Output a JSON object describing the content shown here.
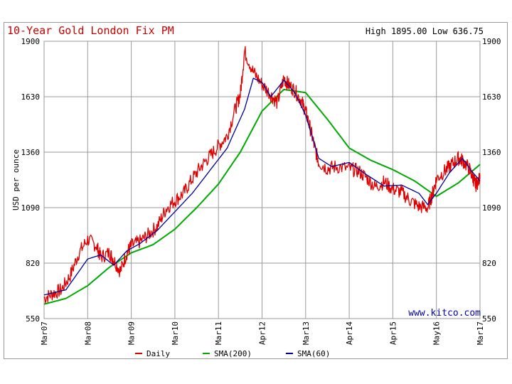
{
  "chart_data": {
    "type": "line",
    "title": "10-Year Gold London Fix PM",
    "high_low": "High 1895.00 Low 636.75",
    "ylabel": "USD per ounce",
    "watermark": "www.kitco.com",
    "ylim": [
      550,
      1900
    ],
    "y_ticks": [
      550,
      820,
      1090,
      1360,
      1630,
      1900
    ],
    "y_tick_labels": [
      "550",
      "820",
      "1090",
      "1360",
      "1630",
      "1900"
    ],
    "x_ticks": [
      "Mar07",
      "Mar08",
      "Mar09",
      "Mar10",
      "Mar11",
      "Apr12",
      "Mar13",
      "Apr14",
      "Apr15",
      "May16",
      "Mar17"
    ],
    "x_tick_pos": [
      0,
      1,
      2,
      3,
      4,
      5,
      6,
      7,
      8,
      9,
      10
    ],
    "legend": [
      {
        "label": "Daily",
        "color": "#e00000"
      },
      {
        "label": "SMA(200)",
        "color": "#00aa00"
      },
      {
        "label": "SMA(60)",
        "color": "#000099"
      }
    ],
    "series": [
      {
        "name": "Daily",
        "color": "#e00000",
        "t": [
          0,
          0.2,
          0.4,
          0.6,
          0.8,
          1.0,
          1.2,
          1.3,
          1.5,
          1.6,
          1.75,
          1.9,
          2.0,
          2.2,
          2.4,
          2.6,
          2.8,
          3.0,
          3.2,
          3.4,
          3.6,
          3.8,
          4.0,
          4.2,
          4.4,
          4.5,
          4.6,
          4.8,
          5.0,
          5.2,
          5.35,
          5.5,
          5.6,
          5.75,
          5.9,
          6.0,
          6.1,
          6.2,
          6.3,
          6.5,
          6.7,
          7.0,
          7.2,
          7.4,
          7.6,
          7.8,
          8.0,
          8.2,
          8.4,
          8.6,
          8.8,
          8.9,
          9.0,
          9.2,
          9.35,
          9.5,
          9.6,
          9.75,
          9.85,
          9.9,
          10.0
        ],
        "values": [
          650,
          672,
          690,
          760,
          870,
          935,
          905,
          850,
          870,
          835,
          780,
          870,
          905,
          925,
          960,
          1000,
          1085,
          1125,
          1160,
          1230,
          1290,
          1340,
          1390,
          1440,
          1580,
          1640,
          1850,
          1750,
          1690,
          1640,
          1600,
          1720,
          1690,
          1660,
          1610,
          1560,
          1480,
          1390,
          1310,
          1280,
          1290,
          1280,
          1270,
          1235,
          1190,
          1215,
          1180,
          1165,
          1125,
          1095,
          1090,
          1150,
          1230,
          1270,
          1300,
          1330,
          1320,
          1280,
          1230,
          1200,
          1230
        ]
      },
      {
        "name": "SMA(200)",
        "color": "#00aa00",
        "t": [
          0,
          0.5,
          1.0,
          1.5,
          2.0,
          2.5,
          3.0,
          3.5,
          4.0,
          4.5,
          5.0,
          5.5,
          6.0,
          6.5,
          7.0,
          7.5,
          8.0,
          8.5,
          9.0,
          9.5,
          10.0
        ],
        "values": [
          620,
          648,
          710,
          800,
          870,
          910,
          985,
          1090,
          1205,
          1360,
          1560,
          1665,
          1650,
          1520,
          1380,
          1320,
          1275,
          1220,
          1145,
          1210,
          1300
        ]
      },
      {
        "name": "SMA(60)",
        "color": "#000099",
        "t": [
          0,
          0.5,
          1.0,
          1.3,
          1.6,
          1.9,
          2.2,
          2.6,
          3.0,
          3.4,
          3.8,
          4.2,
          4.6,
          4.8,
          5.0,
          5.2,
          5.5,
          5.75,
          6.0,
          6.3,
          6.6,
          7.0,
          7.4,
          7.8,
          8.2,
          8.6,
          8.8,
          9.0,
          9.3,
          9.6,
          9.8,
          10.0
        ],
        "values": [
          665,
          690,
          840,
          860,
          810,
          880,
          915,
          980,
          1070,
          1160,
          1270,
          1380,
          1570,
          1720,
          1700,
          1630,
          1710,
          1650,
          1540,
          1330,
          1290,
          1310,
          1250,
          1195,
          1200,
          1160,
          1105,
          1160,
          1260,
          1330,
          1270,
          1220
        ]
      }
    ]
  }
}
